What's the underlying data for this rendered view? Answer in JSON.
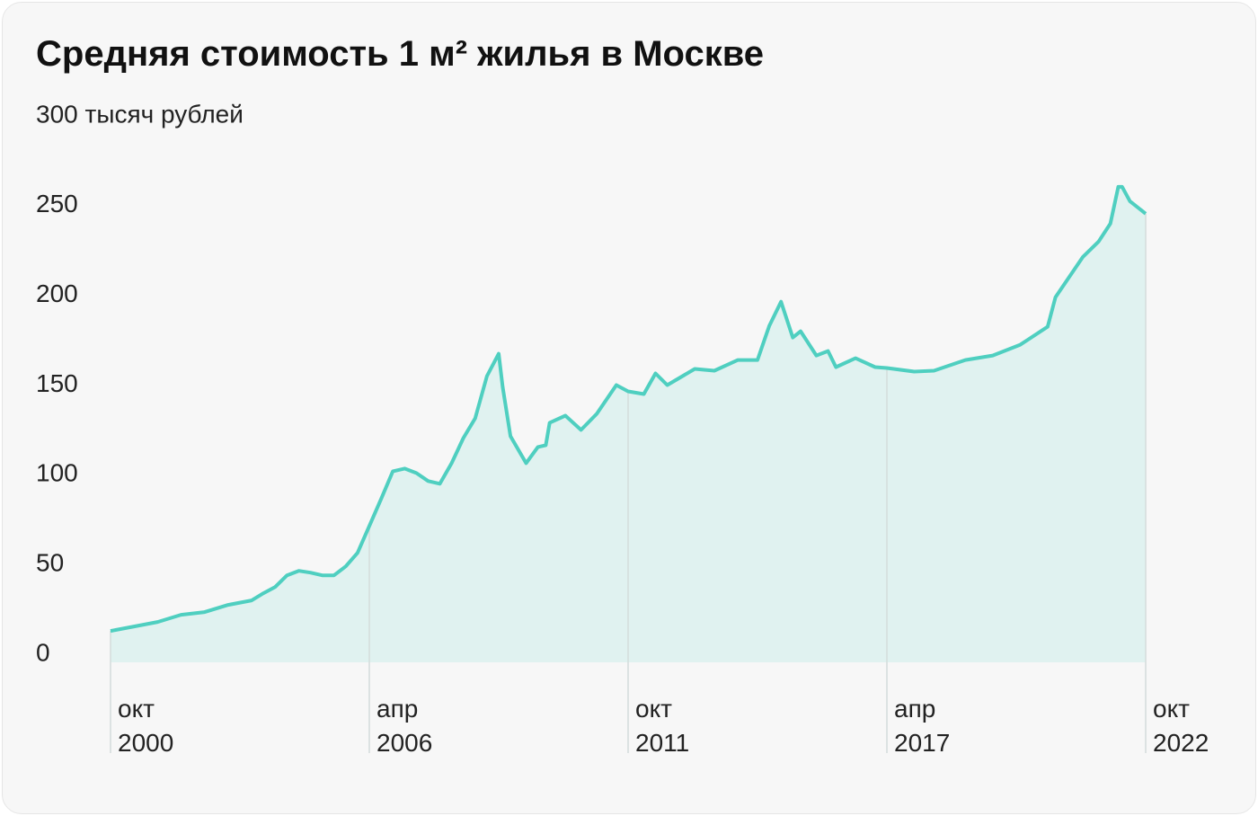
{
  "chart_data": {
    "type": "area",
    "title": "Средняя стоимость 1 м² жилья в Москве",
    "x": [
      "2000-10",
      "2001-04",
      "2001-10",
      "2002-04",
      "2002-10",
      "2003-04",
      "2003-10",
      "2004-01",
      "2004-04",
      "2004-07",
      "2004-10",
      "2005-01",
      "2005-04",
      "2005-07",
      "2005-10",
      "2006-01",
      "2006-04",
      "2006-07",
      "2006-10",
      "2007-01",
      "2007-04",
      "2007-07",
      "2007-10",
      "2008-01",
      "2008-04",
      "2008-07",
      "2008-10",
      "2009-01",
      "2009-02",
      "2009-04",
      "2009-08",
      "2009-11",
      "2010-01",
      "2010-02",
      "2010-06",
      "2010-10",
      "2011-02",
      "2011-07",
      "2011-10",
      "2012-02",
      "2012-05",
      "2012-08",
      "2013-03",
      "2013-08",
      "2014-02",
      "2014-07",
      "2014-10",
      "2015-01",
      "2015-04",
      "2015-06",
      "2015-10",
      "2016-01",
      "2016-03",
      "2016-08",
      "2017-01",
      "2017-04",
      "2017-11",
      "2018-04",
      "2018-12",
      "2019-07",
      "2020-02",
      "2020-09",
      "2020-11",
      "2021-06",
      "2021-10",
      "2022-01",
      "2022-03",
      "2022-04",
      "2022-06",
      "2022-10"
    ],
    "series": [
      {
        "color": "#4fcfc0",
        "values": [
          17.5,
          20,
          22.5,
          26.5,
          28,
          32,
          34.5,
          38.5,
          42,
          48.5,
          51,
          50,
          48.5,
          48.5,
          53.5,
          61,
          76,
          91,
          106.5,
          108,
          105.5,
          101,
          99.5,
          111,
          125,
          136,
          159.5,
          172,
          153.5,
          126,
          111,
          120,
          121,
          133.5,
          137.5,
          129.5,
          138.5,
          154.5,
          151,
          149.5,
          161,
          154.5,
          163.5,
          162.5,
          168.5,
          168.5,
          187.5,
          201,
          181,
          184.5,
          171,
          173.5,
          164.5,
          169.5,
          164.5,
          164,
          162,
          162.5,
          168.5,
          171,
          177,
          187,
          203.5,
          226,
          234.5,
          244.5,
          265,
          265,
          257,
          250
        ]
      }
    ],
    "area_color": "#e0f2f0",
    "xlim": [
      "2000-10",
      "2022-10"
    ],
    "xticks": [
      {
        "value": "2000-10",
        "label": "окт 2000"
      },
      {
        "value": "2006-04",
        "label": "апр 2006"
      },
      {
        "value": "2011-10",
        "label": "окт 2011"
      },
      {
        "value": "2017-04",
        "label": "апр 2017"
      },
      {
        "value": "2022-10",
        "label": "окт 2022"
      }
    ],
    "ylim": [
      0,
      300
    ],
    "yticks": [
      0,
      50,
      100,
      150,
      200,
      250,
      {
        "value": 300,
        "label": "300 тысяч рублей"
      }
    ]
  }
}
